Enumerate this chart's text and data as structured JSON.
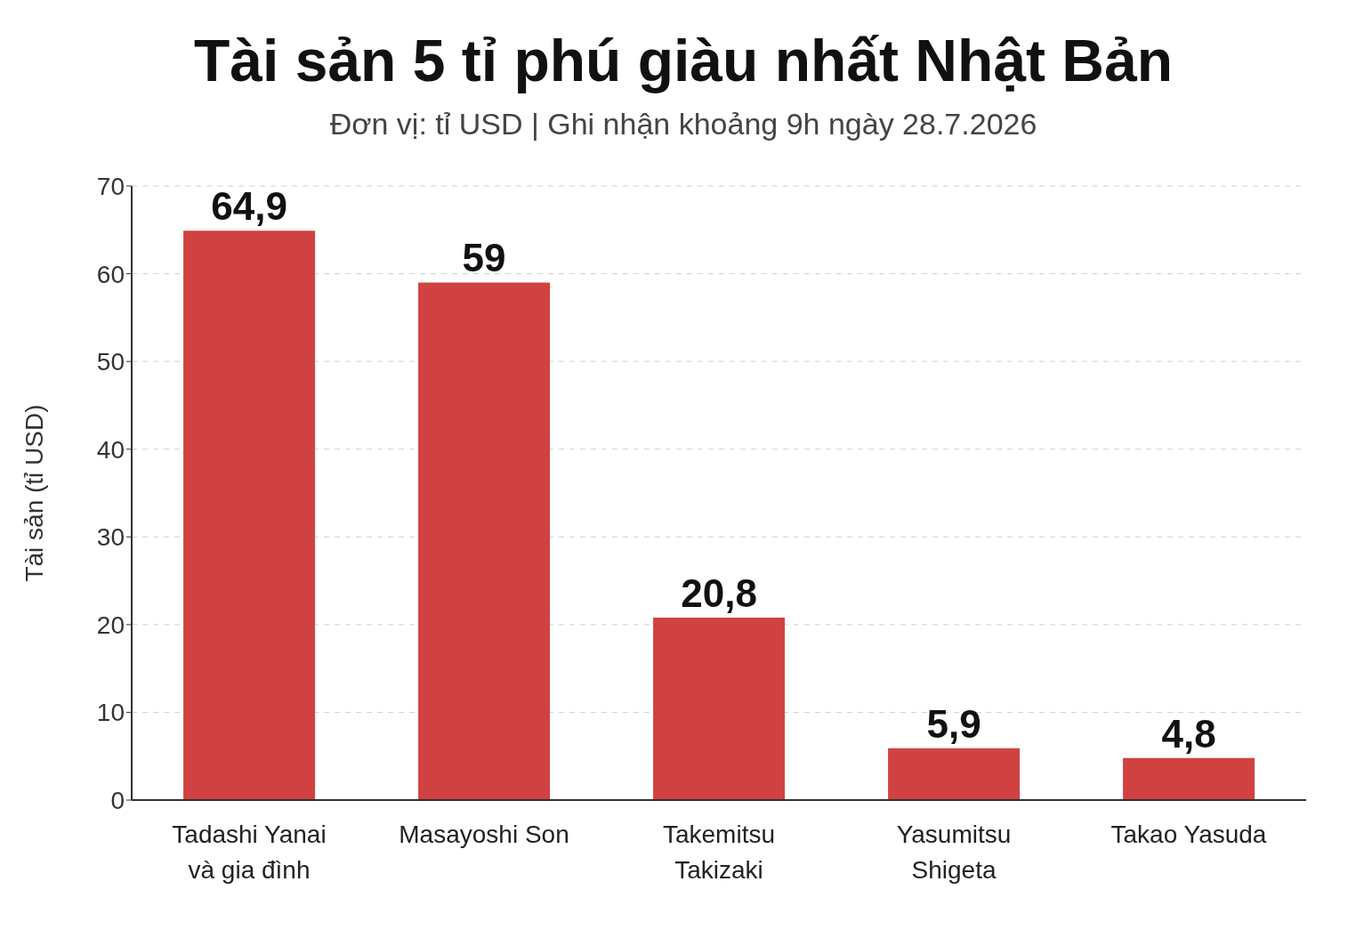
{
  "chart_data": {
    "type": "bar",
    "title": "Tài sản 5 tỉ phú giàu nhất Nhật Bản",
    "subtitle": "Đơn vị: tỉ USD | Ghi nhận khoảng 9h ngày 28.7.2026",
    "ylabel": "Tài sản (tỉ USD)",
    "categories": [
      "Tadashi Yanai và gia đình",
      "Masayoshi Son",
      "Takemitsu Takizaki",
      "Yasumitsu Shigeta",
      "Takao Yasuda"
    ],
    "values": [
      64.9,
      59,
      20.8,
      5.9,
      4.8
    ],
    "value_labels": [
      "64,9",
      "59",
      "20,8",
      "5,9",
      "4,8"
    ],
    "color": "#d04242",
    "ylim": [
      0,
      70
    ],
    "yticks": [
      0,
      10,
      20,
      30,
      40,
      50,
      60,
      70
    ],
    "grid": "y"
  }
}
